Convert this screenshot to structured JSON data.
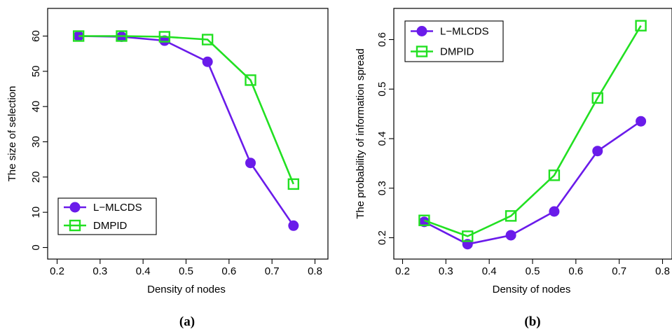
{
  "panels": [
    {
      "caption": "(a)",
      "chart_data": {
        "type": "line",
        "xlabel": "Density of nodes",
        "ylabel": "The size of selection",
        "xlim": [
          0.2,
          0.8
        ],
        "ylim": [
          0,
          60
        ],
        "x_ticks": [
          "0.2",
          "0.3",
          "0.4",
          "0.5",
          "0.6",
          "0.7",
          "0.8"
        ],
        "y_ticks": [
          "0",
          "10",
          "20",
          "30",
          "40",
          "50",
          "60"
        ],
        "legend_position": "bottom-left",
        "x": [
          0.25,
          0.35,
          0.45,
          0.55,
          0.65,
          0.75
        ],
        "series": [
          {
            "name": "L−MLCDS",
            "marker": "circle",
            "color": "#6a1bea",
            "values": [
              60,
              59.8,
              58.7,
              52.7,
              24,
              6.2
            ]
          },
          {
            "name": "DMPID",
            "marker": "square",
            "color": "#22e022",
            "values": [
              60,
              60,
              59.8,
              59,
              47.5,
              18
            ]
          }
        ]
      }
    },
    {
      "caption": "(b)",
      "chart_data": {
        "type": "line",
        "xlabel": "Density of nodes",
        "ylabel": "The probability of information spread",
        "xlim": [
          0.2,
          0.8
        ],
        "ylim": [
          0.2,
          0.6
        ],
        "x_ticks": [
          "0.2",
          "0.3",
          "0.4",
          "0.5",
          "0.6",
          "0.7",
          "0.8"
        ],
        "y_ticks": [
          "0.2",
          "0.3",
          "0.4",
          "0.5",
          "0.6"
        ],
        "legend_position": "top-left",
        "x": [
          0.25,
          0.35,
          0.45,
          0.55,
          0.65,
          0.75
        ],
        "series": [
          {
            "name": "L−MLCDS",
            "marker": "circle",
            "color": "#6a1bea",
            "values": [
              0.232,
              0.187,
              0.205,
              0.253,
              0.375,
              0.435
            ]
          },
          {
            "name": "DMPID",
            "marker": "square",
            "color": "#22e022",
            "values": [
              0.235,
              0.203,
              0.244,
              0.326,
              0.482,
              0.628
            ]
          }
        ]
      }
    }
  ]
}
